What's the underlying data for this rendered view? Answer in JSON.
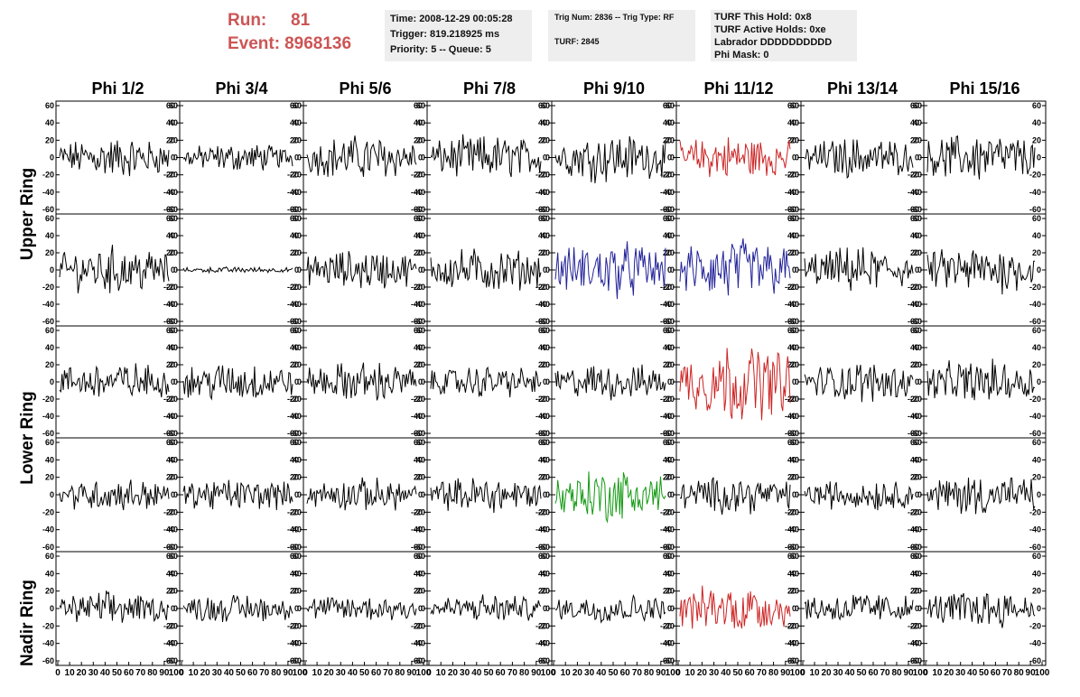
{
  "header": {
    "run_label": "Run:",
    "run_value": "81",
    "event_label": "Event:",
    "event_value": "8968136"
  },
  "info_time": {
    "line1": "Time: 2008-12-29 00:05:28",
    "line2": "Trigger: 819.218925 ms",
    "line3": "Priority: 5 -- Queue: 5"
  },
  "info_trig": {
    "line1": "Trig Num: 2836 -- Trig Type: RF",
    "line2": "TURF: 2845"
  },
  "info_turf": {
    "line1": "TURF This Hold: 0x8",
    "line2": "TURF Active Holds: 0xe",
    "line3": "Labrador DDDDDDDDDD",
    "line4": "Phi Mask: 0"
  },
  "colors": {
    "text_red": "#cc5555",
    "info_bg": "#eeeeee",
    "trace_default": "#000000",
    "trace_red": "#cc2222",
    "trace_blue": "#222299",
    "trace_green": "#119911"
  },
  "chart_data": {
    "type": "line",
    "column_titles": [
      "Phi 1/2",
      "Phi 3/4",
      "Phi 5/6",
      "Phi 7/8",
      "Phi 9/10",
      "Phi 11/12",
      "Phi 13/14",
      "Phi 15/16"
    ],
    "row_titles": [
      "Upper Ring",
      "Lower Ring",
      "Nadir Ring"
    ],
    "ylim": [
      -60,
      60
    ],
    "yticks": [
      -60,
      -40,
      -20,
      0,
      20,
      40,
      60
    ],
    "xlim": [
      0,
      100
    ],
    "xticks": [
      0,
      10,
      20,
      30,
      40,
      50,
      60,
      70,
      80,
      90,
      100
    ],
    "samples_per_trace": 90,
    "panel_rows": 5,
    "panel_cols": 8,
    "trace_amplitude": [
      [
        20,
        14,
        22,
        22,
        24,
        22,
        20,
        24
      ],
      [
        24,
        3,
        20,
        22,
        28,
        32,
        22,
        24
      ],
      [
        20,
        20,
        20,
        16,
        18,
        38,
        20,
        22
      ],
      [
        16,
        16,
        16,
        18,
        26,
        18,
        16,
        20
      ],
      [
        16,
        14,
        14,
        14,
        14,
        24,
        16,
        18
      ]
    ],
    "trace_color": [
      [
        "black",
        "black",
        "black",
        "black",
        "black",
        "red",
        "black",
        "black"
      ],
      [
        "black",
        "black",
        "black",
        "black",
        "blue",
        "blue",
        "black",
        "black"
      ],
      [
        "black",
        "black",
        "black",
        "black",
        "black",
        "red",
        "black",
        "black"
      ],
      [
        "black",
        "black",
        "black",
        "black",
        "green",
        "black",
        "black",
        "black"
      ],
      [
        "black",
        "black",
        "black",
        "black",
        "black",
        "red",
        "black",
        "black"
      ]
    ]
  }
}
